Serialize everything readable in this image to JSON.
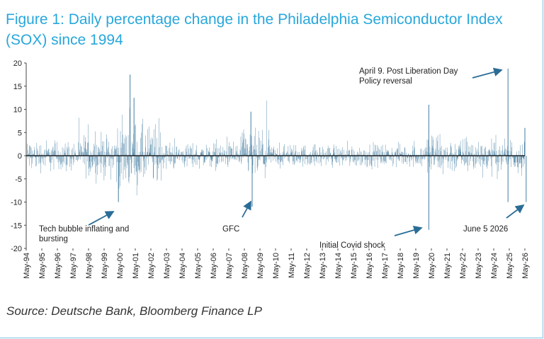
{
  "title": "Figure 1: Daily percentage change in the Philadelphia Semiconductor Index (SOX) since 1994",
  "source": "Source: Deutsche Bank, Bloomberg Finance LP",
  "colors": {
    "title": "#28a7dc",
    "series": "#2e6f96",
    "zero_line": "#000000",
    "arrow": "#2a6c96"
  },
  "chart_data": {
    "type": "bar",
    "title": "Figure 1: Daily percentage change in the Philadelphia Semiconductor Index (SOX) since 1994",
    "xlabel": "",
    "ylabel": "",
    "ylim": [
      -20,
      20
    ],
    "yticks": [
      20,
      15,
      10,
      5,
      0,
      -5,
      -10,
      -15,
      -20
    ],
    "xlim": [
      "May-94",
      "May-26"
    ],
    "x_tick_labels": [
      "May-94",
      "May-95",
      "May-96",
      "May-97",
      "May-98",
      "May-99",
      "May-00",
      "May-01",
      "May-02",
      "May-03",
      "May-04",
      "May-05",
      "May-06",
      "May-07",
      "May-08",
      "May-09",
      "May-10",
      "May-11",
      "May-12",
      "May-13",
      "May-14",
      "May-15",
      "May-16",
      "May-17",
      "May-18",
      "May-19",
      "May-20",
      "May-21",
      "May-22",
      "May-23",
      "May-24",
      "May-25",
      "May-26"
    ],
    "grid": false,
    "series": [
      {
        "values_note_free": true,
        "volatility_profile": [
          {
            "period": [
              "May-94",
              "Jan-98"
            ],
            "typical_abs": 2.2
          },
          {
            "period": [
              "Jan-98",
              "Jan-00"
            ],
            "typical_abs": 3.0
          },
          {
            "period": [
              "Jan-00",
              "Jan-03"
            ],
            "typical_abs": 4.5
          },
          {
            "period": [
              "Jan-03",
              "Jan-08"
            ],
            "typical_abs": 1.8
          },
          {
            "period": [
              "Jan-08",
              "Jan-10"
            ],
            "typical_abs": 3.5
          },
          {
            "period": [
              "Jan-10",
              "Jan-20"
            ],
            "typical_abs": 1.6
          },
          {
            "period": [
              "Jan-20",
              "Jan-21"
            ],
            "typical_abs": 3.5
          },
          {
            "period": [
              "Jan-21",
              "May-26"
            ],
            "typical_abs": 2.5
          }
        ],
        "notable_points": [
          {
            "x": "Jan-01",
            "y": 17.5
          },
          {
            "x": "Apr-01",
            "y": 12.5
          },
          {
            "x": "Apr-00",
            "y": -10
          },
          {
            "x": "Oct-08",
            "y": 9.5
          },
          {
            "x": "Nov-08",
            "y": -11
          },
          {
            "x": "Mar-20",
            "y": 11
          },
          {
            "x": "Mar-20",
            "y": -16
          },
          {
            "x": "Apr-25",
            "y": 18.8
          },
          {
            "x": "Apr-25",
            "y": -10
          },
          {
            "x": "Jun-26",
            "y": -10
          },
          {
            "x": "May-26",
            "y": 6
          }
        ]
      }
    ],
    "annotations": [
      {
        "text": [
          "Tech bubble inflating and",
          "bursting"
        ]
      },
      {
        "text": [
          "GFC"
        ]
      },
      {
        "text": [
          "Initial Covid shock"
        ]
      },
      {
        "text": [
          "April 9. Post Liberation Day",
          "Policy reversal"
        ]
      },
      {
        "text": [
          "June 5 2026"
        ]
      }
    ]
  }
}
